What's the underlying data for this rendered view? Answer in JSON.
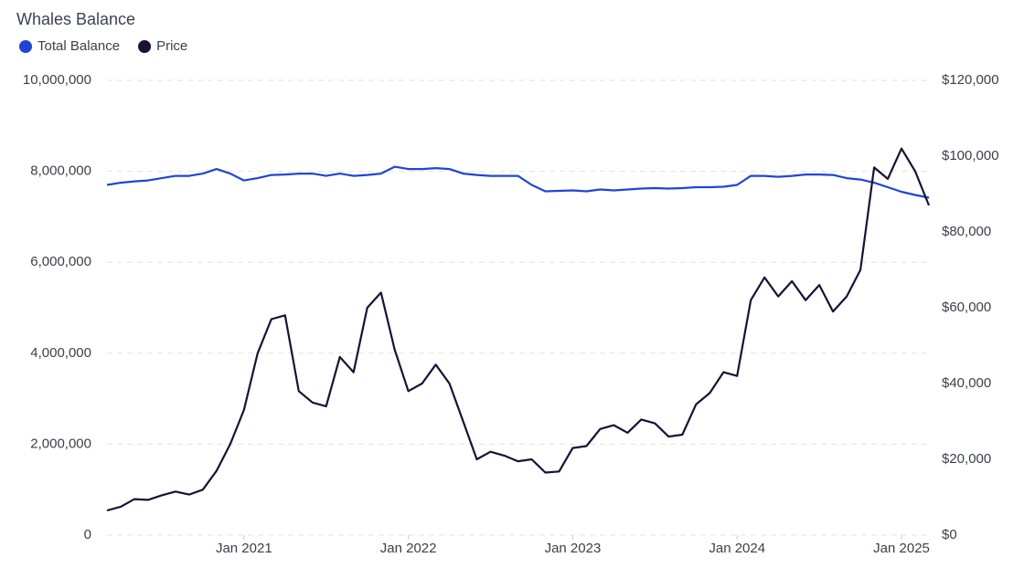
{
  "chart_data": {
    "type": "line",
    "title": "Whales Balance",
    "x": [
      "2020-03",
      "2020-04",
      "2020-05",
      "2020-06",
      "2020-07",
      "2020-08",
      "2020-09",
      "2020-10",
      "2020-11",
      "2020-12",
      "2021-01",
      "2021-02",
      "2021-03",
      "2021-04",
      "2021-05",
      "2021-06",
      "2021-07",
      "2021-08",
      "2021-09",
      "2021-10",
      "2021-11",
      "2021-12",
      "2022-01",
      "2022-02",
      "2022-03",
      "2022-04",
      "2022-05",
      "2022-06",
      "2022-07",
      "2022-08",
      "2022-09",
      "2022-10",
      "2022-11",
      "2022-12",
      "2023-01",
      "2023-02",
      "2023-03",
      "2023-04",
      "2023-05",
      "2023-06",
      "2023-07",
      "2023-08",
      "2023-09",
      "2023-10",
      "2023-11",
      "2023-12",
      "2024-01",
      "2024-02",
      "2024-03",
      "2024-04",
      "2024-05",
      "2024-06",
      "2024-07",
      "2024-08",
      "2024-09",
      "2024-10",
      "2024-11",
      "2024-12",
      "2025-01",
      "2025-02",
      "2025-03"
    ],
    "xticks": [
      {
        "value": "2021-01",
        "label": "Jan 2021"
      },
      {
        "value": "2022-01",
        "label": "Jan 2022"
      },
      {
        "value": "2023-01",
        "label": "Jan 2023"
      },
      {
        "value": "2024-01",
        "label": "Jan 2024"
      },
      {
        "value": "2025-01",
        "label": "Jan 2025"
      }
    ],
    "series": [
      {
        "name": "Total Balance",
        "color": "#1f45d8",
        "axis": "y",
        "values": [
          7700000,
          7750000,
          7780000,
          7800000,
          7850000,
          7900000,
          7900000,
          7950000,
          8050000,
          7950000,
          7800000,
          7850000,
          7920000,
          7930000,
          7950000,
          7950000,
          7900000,
          7950000,
          7900000,
          7920000,
          7950000,
          8100000,
          8050000,
          8050000,
          8070000,
          8050000,
          7950000,
          7920000,
          7900000,
          7900000,
          7900000,
          7700000,
          7560000,
          7570000,
          7580000,
          7560000,
          7600000,
          7580000,
          7600000,
          7620000,
          7630000,
          7620000,
          7630000,
          7650000,
          7650000,
          7660000,
          7700000,
          7900000,
          7900000,
          7880000,
          7900000,
          7930000,
          7930000,
          7920000,
          7850000,
          7820000,
          7750000,
          7650000,
          7550000,
          7480000,
          7420000
        ]
      },
      {
        "name": "Price",
        "color": "#1c0f38",
        "axis": "y2",
        "values": [
          6500,
          7500,
          9500,
          9300,
          10500,
          11500,
          10700,
          12000,
          17000,
          24000,
          33000,
          48000,
          57000,
          58000,
          38000,
          35000,
          34000,
          47000,
          43000,
          60000,
          64000,
          49000,
          38000,
          40000,
          45000,
          40000,
          30000,
          20000,
          22000,
          21000,
          19500,
          20000,
          16500,
          16800,
          23000,
          23500,
          28000,
          29000,
          27000,
          30500,
          29500,
          26000,
          26500,
          34500,
          37500,
          43000,
          42000,
          62000,
          68000,
          63000,
          67000,
          62000,
          66000,
          59000,
          63000,
          70000,
          97000,
          94000,
          102000,
          96000,
          87000
        ]
      }
    ],
    "ylim": [
      0,
      10000000
    ],
    "yticks": [
      0,
      {
        "value": 2000000,
        "label": "2,000,000"
      },
      {
        "value": 4000000,
        "label": "4,000,000"
      },
      {
        "value": 6000000,
        "label": "6,000,000"
      },
      {
        "value": 8000000,
        "label": "8,000,000"
      },
      {
        "value": 10000000,
        "label": "10,000,000"
      }
    ],
    "y2lim": [
      0,
      120000
    ],
    "y2ticks": [
      {
        "value": 0,
        "label": "$0"
      },
      {
        "value": 20000,
        "label": "$20,000"
      },
      {
        "value": 40000,
        "label": "$40,000"
      },
      {
        "value": 60000,
        "label": "$60,000"
      },
      {
        "value": 80000,
        "label": "$80,000"
      },
      {
        "value": 100000,
        "label": "$100,000"
      },
      {
        "value": 120000,
        "label": "$120,000"
      }
    ],
    "grid": true
  }
}
